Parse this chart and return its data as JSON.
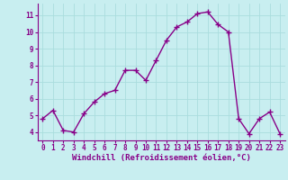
{
  "x": [
    0,
    1,
    2,
    3,
    4,
    5,
    6,
    7,
    8,
    9,
    10,
    11,
    12,
    13,
    14,
    15,
    16,
    17,
    18,
    19,
    20,
    21,
    22,
    23
  ],
  "y": [
    4.8,
    5.3,
    4.1,
    4.0,
    5.1,
    5.8,
    6.3,
    6.5,
    7.7,
    7.7,
    7.1,
    8.3,
    9.5,
    10.3,
    10.6,
    11.1,
    11.2,
    10.45,
    10.0,
    4.8,
    3.9,
    4.8,
    5.2,
    3.9
  ],
  "line_color": "#880088",
  "marker": "+",
  "marker_size": 4,
  "linewidth": 1.0,
  "xlabel": "Windchill (Refroidissement éolien,°C)",
  "xlabel_fontsize": 6.5,
  "background_color": "#c8eef0",
  "grid_color": "#aadddd",
  "axis_color": "#880088",
  "tick_color": "#880088",
  "ylim": [
    3.5,
    11.7
  ],
  "xlim": [
    -0.5,
    23.5
  ],
  "yticks": [
    4,
    5,
    6,
    7,
    8,
    9,
    10,
    11
  ],
  "xticks": [
    0,
    1,
    2,
    3,
    4,
    5,
    6,
    7,
    8,
    9,
    10,
    11,
    12,
    13,
    14,
    15,
    16,
    17,
    18,
    19,
    20,
    21,
    22,
    23
  ],
  "tick_fontsize": 5.5,
  "xlabel_color": "#880088"
}
